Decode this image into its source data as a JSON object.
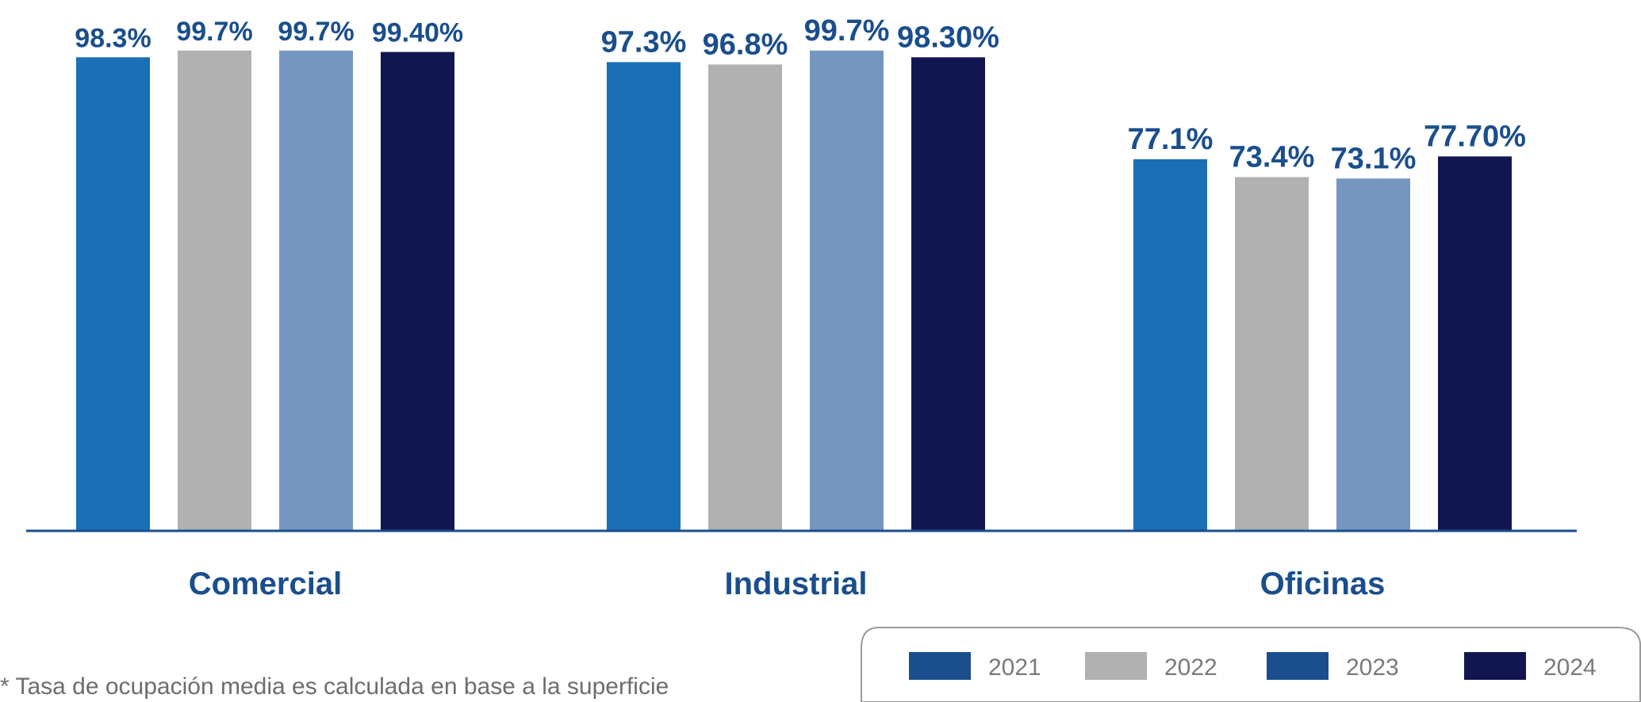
{
  "chart_data": {
    "type": "bar",
    "categories": [
      "Comercial",
      "Industrial",
      "Oficinas"
    ],
    "series": [
      {
        "name": "2021",
        "values": [
          98.3,
          97.3,
          77.1
        ],
        "labels": [
          "98.3%",
          "97.3%",
          "77.1%"
        ],
        "color": "#1a6fb5",
        "legend_color": "#1a4e8d"
      },
      {
        "name": "2022",
        "values": [
          99.7,
          96.8,
          73.4
        ],
        "labels": [
          "99.7%",
          "96.8%",
          "73.4%"
        ],
        "color": "#b1b1b1",
        "legend_color": "#b1b1b1"
      },
      {
        "name": "2023",
        "values": [
          99.7,
          99.7,
          73.1
        ],
        "labels": [
          "99.7%",
          "99.7%",
          "73.1%"
        ],
        "color": "#7596be",
        "legend_color": "#1a4e8d"
      },
      {
        "name": "2024",
        "values": [
          99.4,
          98.3,
          77.7
        ],
        "labels": [
          "99.40%",
          "98.30%",
          "77.70%"
        ],
        "color": "#121650",
        "legend_color": "#121650"
      }
    ],
    "ylim": [
      0,
      100
    ],
    "grid": false,
    "legend_position": "bottom-right",
    "label_color": "#1a4e8d",
    "axis_color": "#1a4e8d"
  },
  "footnote": "* Tasa de ocupación media es calculada en base a la superficie"
}
